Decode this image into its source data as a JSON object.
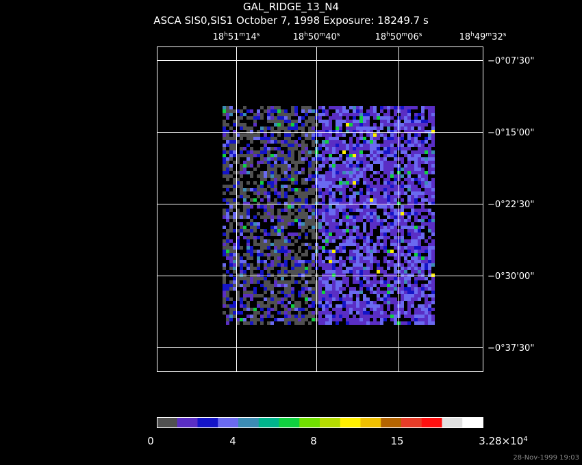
{
  "title": "GAL_RIDGE_13_N4",
  "subtitle": "ASCA SIS0,SIS1 October 7, 1998 Exposure: 18249.7 s",
  "ra_labels": [
    [
      "18",
      "h",
      "51",
      "m",
      "14",
      "s"
    ],
    [
      "18",
      "h",
      "50",
      "m",
      "40",
      "s"
    ],
    [
      "18",
      "h",
      "50",
      "m",
      "06",
      "s"
    ],
    [
      "18",
      "h",
      "49",
      "m",
      "32",
      "s"
    ]
  ],
  "dec_labels": [
    "−0°07'30\"",
    "−0°15'00\"",
    "−0°22'30\"",
    "−0°30'00\"",
    "−0°37'30\""
  ],
  "colorbar": {
    "colors": [
      "#505050",
      "#5a2ec4",
      "#1414c8",
      "#6a6af0",
      "#3c8cb4",
      "#00b48c",
      "#10d040",
      "#70e000",
      "#b4dc00",
      "#fff000",
      "#f0c000",
      "#b46400",
      "#e83c28",
      "#ff1010",
      "#e0e0e0",
      "#ffffff"
    ],
    "labels": [
      [
        "0"
      ],
      [
        "4"
      ],
      [
        "8"
      ],
      [
        "15"
      ],
      [
        "3.28×10",
        "4"
      ]
    ]
  },
  "timestamp": "28-Nov-1999 19:03"
}
